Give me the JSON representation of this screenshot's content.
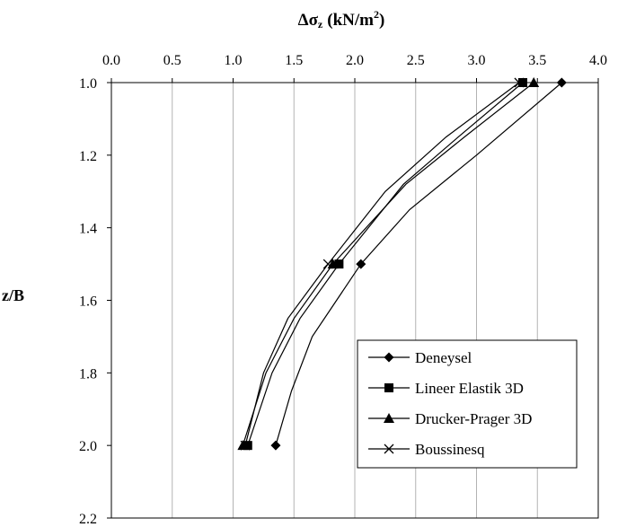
{
  "chart_data": {
    "type": "line",
    "title": "",
    "xlabel_main": "Δσ",
    "xlabel_sub": "z",
    "xlabel_unit_base": "(kN/m",
    "xlabel_unit_sup": "2",
    "xlabel_unit_end": ")",
    "ylabel": "z/B",
    "xlim": [
      0.0,
      4.0
    ],
    "ylim": [
      1.0,
      2.2
    ],
    "y_inverted": true,
    "x_axis_position": "top",
    "x_ticks": [
      "0.0",
      "0.5",
      "1.0",
      "1.5",
      "2.0",
      "2.5",
      "3.0",
      "3.5",
      "4.0"
    ],
    "y_ticks": [
      "1.0",
      "1.2",
      "1.4",
      "1.6",
      "1.8",
      "2.0",
      "2.2"
    ],
    "grid": "vertical",
    "legend_position": "bottom-right",
    "series": [
      {
        "name": "Deneysel",
        "marker": "diamond",
        "points": [
          [
            3.7,
            1.0
          ],
          [
            2.05,
            1.5
          ],
          [
            1.35,
            2.0
          ]
        ],
        "curve": [
          [
            3.7,
            1.0
          ],
          [
            3.0,
            1.2
          ],
          [
            2.45,
            1.35
          ],
          [
            2.05,
            1.5
          ],
          [
            1.85,
            1.6
          ],
          [
            1.65,
            1.7
          ],
          [
            1.48,
            1.85
          ],
          [
            1.35,
            2.0
          ]
        ]
      },
      {
        "name": "Lineer Elastik 3D",
        "marker": "square",
        "points": [
          [
            3.38,
            1.0
          ],
          [
            1.87,
            1.5
          ],
          [
            1.12,
            2.0
          ]
        ],
        "curve": [
          [
            3.38,
            1.0
          ],
          [
            2.85,
            1.15
          ],
          [
            2.4,
            1.28
          ],
          [
            1.87,
            1.5
          ],
          [
            1.55,
            1.65
          ],
          [
            1.32,
            1.8
          ],
          [
            1.12,
            2.0
          ]
        ]
      },
      {
        "name": "Drucker-Prager 3D",
        "marker": "triangle",
        "points": [
          [
            3.47,
            1.0
          ],
          [
            1.82,
            1.5
          ],
          [
            1.08,
            2.0
          ]
        ],
        "curve": [
          [
            3.47,
            1.0
          ],
          [
            2.9,
            1.15
          ],
          [
            2.42,
            1.28
          ],
          [
            1.82,
            1.5
          ],
          [
            1.5,
            1.65
          ],
          [
            1.27,
            1.8
          ],
          [
            1.08,
            2.0
          ]
        ]
      },
      {
        "name": "Boussinesq",
        "marker": "x",
        "points": [
          [
            3.35,
            1.0
          ],
          [
            1.78,
            1.5
          ],
          [
            1.1,
            2.0
          ]
        ],
        "curve": [
          [
            3.35,
            1.0
          ],
          [
            2.75,
            1.15
          ],
          [
            2.25,
            1.3
          ],
          [
            1.78,
            1.5
          ],
          [
            1.45,
            1.65
          ],
          [
            1.25,
            1.8
          ],
          [
            1.1,
            2.0
          ]
        ]
      }
    ]
  }
}
